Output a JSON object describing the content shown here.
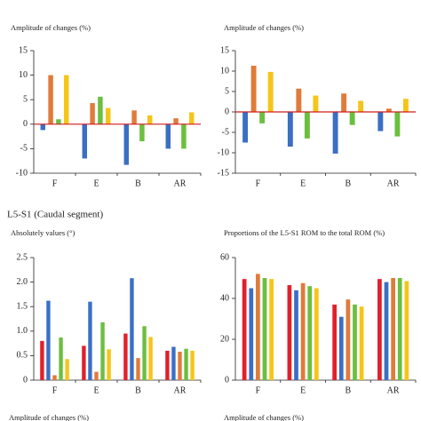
{
  "section_title": "L5-S1 (Caudal segment)",
  "bottom_titles": [
    "Amplitude of changes (%)",
    "Amplitude of changes (%)"
  ],
  "chart_data": [
    {
      "type": "bar",
      "title": "Amplitude of changes (%)",
      "categories": [
        "F",
        "E",
        "B",
        "AR"
      ],
      "series": [
        {
          "color": "#3a6fc4",
          "values": [
            -1.2,
            -7,
            -8.3,
            -5
          ]
        },
        {
          "color": "#e07b39",
          "values": [
            10,
            4.3,
            2.8,
            1.2
          ]
        },
        {
          "color": "#6bbf3f",
          "values": [
            1,
            5.6,
            -3.5,
            -5
          ]
        },
        {
          "color": "#f5c518",
          "values": [
            10,
            3.3,
            1.8,
            2.4
          ]
        }
      ],
      "ylim": [
        -10,
        15
      ],
      "yticks": [
        -10,
        -5,
        0,
        5,
        10,
        15
      ],
      "zero_line_color": "#d01c1c"
    },
    {
      "type": "bar",
      "title": "Amplitude of changes (%)",
      "categories": [
        "F",
        "E",
        "B",
        "AR"
      ],
      "series": [
        {
          "color": "#3a6fc4",
          "values": [
            -7.5,
            -8.5,
            -10.2,
            -4.7
          ]
        },
        {
          "color": "#e07b39",
          "values": [
            11.3,
            5.7,
            4.5,
            0.8
          ]
        },
        {
          "color": "#6bbf3f",
          "values": [
            -2.8,
            -6.5,
            -3.2,
            -6
          ]
        },
        {
          "color": "#f5c518",
          "values": [
            9.8,
            4,
            2.7,
            3.2
          ]
        }
      ],
      "ylim": [
        -15,
        15
      ],
      "yticks": [
        -15,
        -10,
        -5,
        0,
        5,
        10,
        15
      ],
      "zero_line_color": "#d01c1c"
    },
    {
      "type": "bar",
      "title": "Absolutely values (°)",
      "categories": [
        "F",
        "E",
        "B",
        "AR"
      ],
      "series": [
        {
          "color": "#e0202a",
          "values": [
            0.8,
            0.7,
            0.95,
            0.6
          ]
        },
        {
          "color": "#3a6fc4",
          "values": [
            1.62,
            1.6,
            2.08,
            0.68
          ]
        },
        {
          "color": "#e07b39",
          "values": [
            0.1,
            0.17,
            0.45,
            0.58
          ]
        },
        {
          "color": "#6bbf3f",
          "values": [
            0.87,
            1.18,
            1.1,
            0.64
          ]
        },
        {
          "color": "#f5c518",
          "values": [
            0.43,
            0.63,
            0.88,
            0.6
          ]
        }
      ],
      "ylim": [
        0,
        2.5
      ],
      "yticks": [
        0,
        0.5,
        {
          "value": 1,
          "label": "1.0"
        },
        1.5,
        {
          "value": 2,
          "label": "2.0"
        },
        2.5
      ]
    },
    {
      "type": "bar",
      "title": "Proportions of the L5-S1 ROM to the total ROM (%)",
      "categories": [
        "F",
        "E",
        "B",
        "AR"
      ],
      "series": [
        {
          "color": "#e0202a",
          "values": [
            49.5,
            46.5,
            37,
            49.5
          ]
        },
        {
          "color": "#3a6fc4",
          "values": [
            45,
            44,
            31,
            48
          ]
        },
        {
          "color": "#e07b39",
          "values": [
            52,
            47.5,
            39.5,
            50
          ]
        },
        {
          "color": "#6bbf3f",
          "values": [
            50,
            46,
            37,
            50
          ]
        },
        {
          "color": "#f5c518",
          "values": [
            49.5,
            45,
            36,
            48.5
          ]
        }
      ],
      "ylim": [
        0,
        60
      ],
      "yticks": [
        0,
        20,
        40,
        60
      ]
    }
  ]
}
